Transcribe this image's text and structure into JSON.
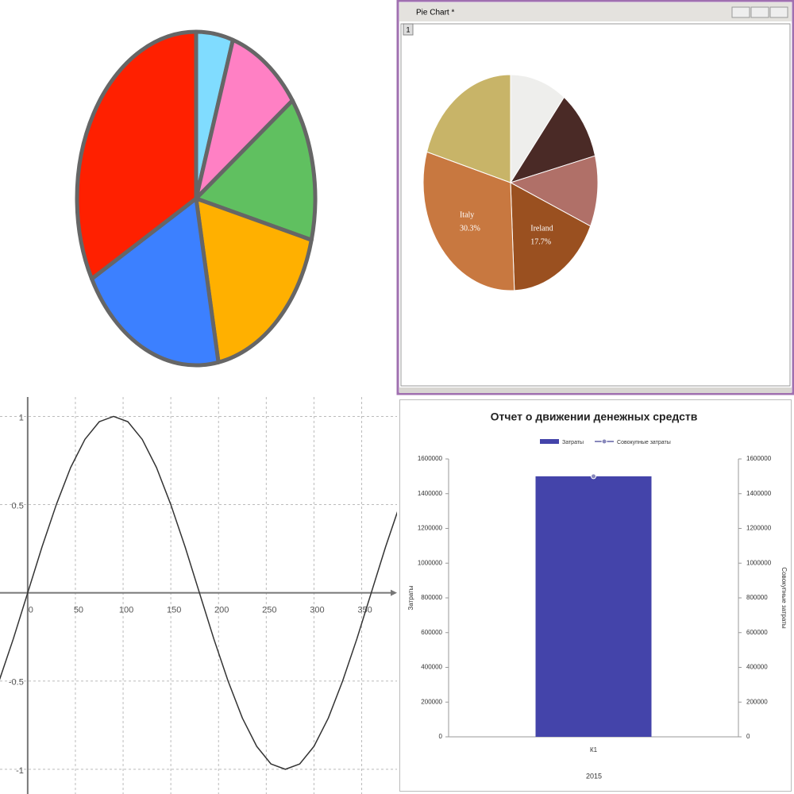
{
  "chart_data": [
    {
      "type": "pie",
      "values": [
        5,
        10,
        14,
        18,
        20,
        33
      ],
      "colors": [
        "#80dcff",
        "#ff80c4",
        "#60c060",
        "#ffb000",
        "#3c80ff",
        "#ff2000"
      ]
    },
    {
      "type": "pie",
      "window_title": "Pie Chart *",
      "tab": "1",
      "categories": [
        null,
        null,
        null,
        "Ireland",
        "Italy",
        null
      ],
      "values": [
        10.5,
        10.5,
        10.6,
        17.7,
        30.3,
        20.4
      ],
      "value_labels": [
        null,
        null,
        null,
        "17.7%",
        "30.3%",
        null
      ],
      "colors": [
        "#eeeeec",
        "#4a2a26",
        "#b07068",
        "#9a5020",
        "#c87840",
        "#c8b468"
      ]
    },
    {
      "type": "line",
      "x": [
        -30,
        -15,
        0,
        15,
        30,
        45,
        60,
        75,
        90,
        105,
        120,
        135,
        150,
        165,
        180,
        195,
        210,
        225,
        240,
        255,
        270,
        285,
        300,
        315,
        330,
        345,
        360,
        375,
        390
      ],
      "values": [
        -0.5,
        -0.26,
        0,
        0.26,
        0.5,
        0.71,
        0.87,
        0.97,
        1,
        0.97,
        0.87,
        0.71,
        0.5,
        0.26,
        0,
        -0.26,
        -0.5,
        -0.71,
        -0.87,
        -0.97,
        -1,
        -0.97,
        -0.87,
        -0.71,
        -0.5,
        -0.26,
        0,
        0.26,
        0.5
      ],
      "color": "#333333",
      "xlim": [
        -29,
        387
      ],
      "ylim": [
        -1.14,
        1.11
      ],
      "xticks": [
        0,
        50,
        100,
        150,
        200,
        250,
        300,
        350
      ],
      "yticks": [
        -1,
        -0.5,
        0.5,
        1
      ],
      "grid": true
    },
    {
      "type": "bar",
      "title": "Отчет о движении денежных средств",
      "categories": [
        "К1"
      ],
      "x_label": "2015",
      "y_label": "Затраты",
      "y2_label": "Совокупные затраты",
      "series": [
        {
          "name": "Затраты",
          "color": "#4444aa",
          "values": [
            1500000
          ]
        },
        {
          "name": "Совокупные затраты",
          "color": "#8888bb",
          "values": [
            1500000
          ],
          "axis": "y2",
          "kind": "line"
        }
      ],
      "ylim": [
        0,
        1600000
      ],
      "yticks": [
        0,
        200000,
        400000,
        600000,
        800000,
        1000000,
        1200000,
        1400000,
        1600000
      ],
      "y2lim": [
        0,
        1600000
      ],
      "y2ticks": [
        0,
        200000,
        400000,
        600000,
        800000,
        1000000,
        1200000,
        1400000,
        1600000
      ]
    }
  ]
}
